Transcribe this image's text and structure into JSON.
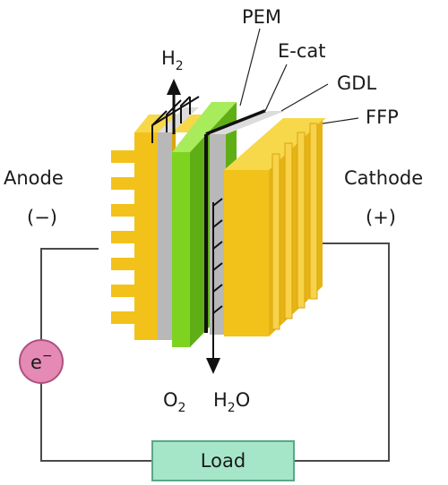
{
  "labels": {
    "h2": "H",
    "h2_sub": "2",
    "pem": "PEM",
    "ecat": "E-cat",
    "gdl": "GDL",
    "ffp": "FFP",
    "anode": "Anode",
    "anode_sign": "(−)",
    "cathode": "Cathode",
    "cathode_sign": "(+)",
    "o2": "O",
    "o2_sub": "2",
    "h2o_a": "H",
    "h2o_sub": "2",
    "h2o_b": "O",
    "electron": "e",
    "electron_sup": "−",
    "load": "Load"
  },
  "colors": {
    "plate_yellow": "#f2c21b",
    "plate_yellow_shade": "#d9a40f",
    "gdl_gray": "#b8b8b8",
    "membrane_green": "#7ed321",
    "membrane_green_shade": "#5fae16",
    "electron_pink": "#e58ab5",
    "load_green": "#a6e6c8",
    "wire": "#4a4a4a"
  }
}
